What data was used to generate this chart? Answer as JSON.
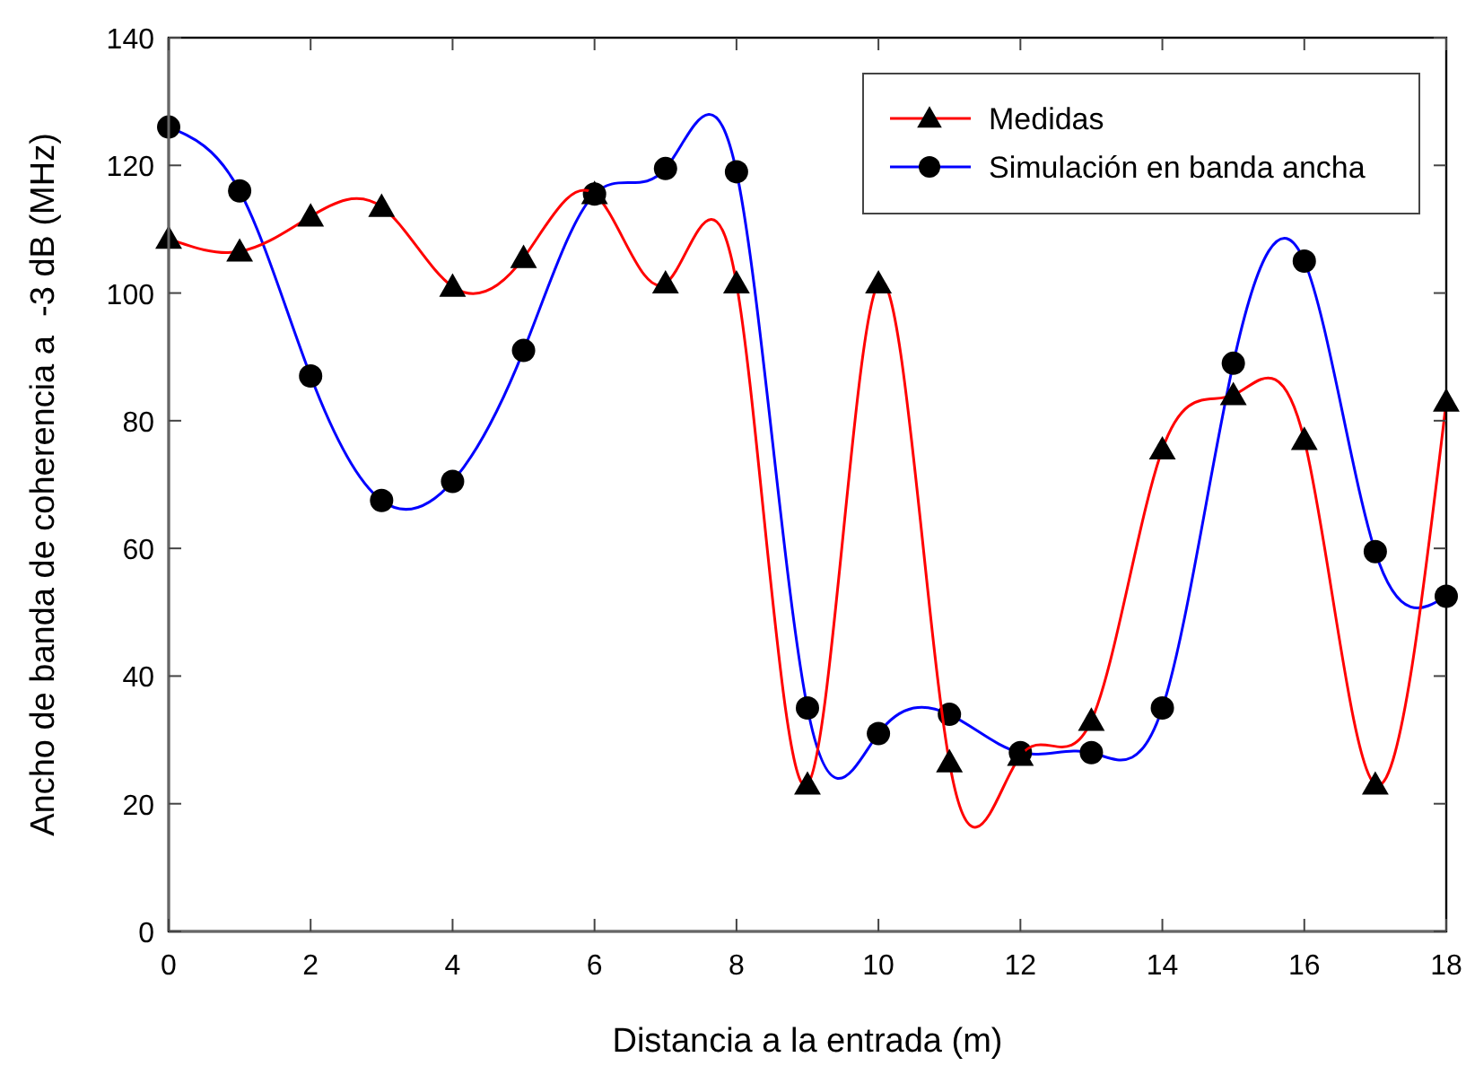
{
  "chart_data": {
    "type": "line",
    "xlabel": "Distancia a la entrada (m)",
    "ylabel": "Ancho de banda de coherencia a  -3 dB (MHz)",
    "x": [
      0,
      1,
      2,
      3,
      4,
      5,
      6,
      7,
      8,
      9,
      10,
      11,
      12,
      13,
      14,
      15,
      16,
      17,
      18
    ],
    "series": [
      {
        "name": "Medidas",
        "color": "#ff0000",
        "marker": "triangle",
        "values": [
          108.5,
          106.5,
          112,
          113.5,
          101,
          105.5,
          115.5,
          101.5,
          101.5,
          23,
          101.5,
          26.5,
          27.5,
          33,
          75.5,
          84,
          77,
          23,
          83
        ]
      },
      {
        "name": "Simulación en banda ancha",
        "color": "#0000ff",
        "marker": "circle",
        "values": [
          126,
          116,
          87,
          67.5,
          70.5,
          91,
          115.5,
          119.5,
          119,
          35,
          31,
          34,
          28,
          28,
          35,
          89,
          105,
          59.5,
          52.5
        ]
      }
    ],
    "xlim": [
      0,
      18
    ],
    "xticks": [
      0,
      2,
      4,
      6,
      8,
      10,
      12,
      14,
      16,
      18
    ],
    "ylim": [
      0,
      140
    ],
    "yticks": [
      0,
      20,
      40,
      60,
      80,
      100,
      120,
      140
    ],
    "grid": false,
    "legend": "top right",
    "line_style": "solid"
  }
}
